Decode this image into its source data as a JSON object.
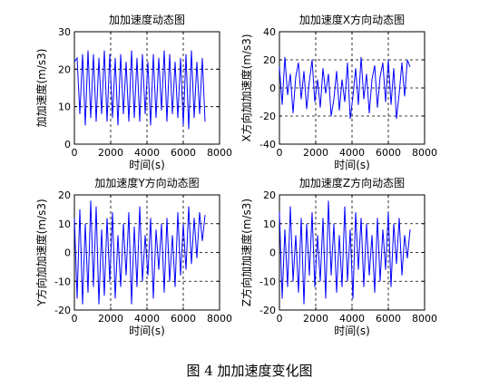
{
  "figure": {
    "caption": "图 4  加加速度变化图"
  },
  "chart_data": [
    {
      "type": "line",
      "title": "加加速度动态图",
      "xlabel": "时间(s)",
      "ylabel": "加加速度(m/s3)",
      "xlim": [
        0,
        8000
      ],
      "ylim": [
        0,
        30
      ],
      "xticks": [
        "0",
        "2000",
        "4000",
        "6000",
        "8000"
      ],
      "yticks": [
        "0",
        "10",
        "20",
        "30"
      ],
      "grid": "dashed at 2000, 4000, 6000 and y = 10, 20",
      "line_color": "#0000ff",
      "x": [
        0,
        150,
        300,
        450,
        600,
        750,
        900,
        1050,
        1200,
        1350,
        1500,
        1650,
        1800,
        1950,
        2100,
        2250,
        2400,
        2550,
        2700,
        2850,
        3000,
        3150,
        3300,
        3450,
        3600,
        3750,
        3900,
        4050,
        4200,
        4350,
        4500,
        4650,
        4800,
        4950,
        5100,
        5250,
        5400,
        5550,
        5700,
        5850,
        6000,
        6150,
        6300,
        6450,
        6600,
        6750,
        6900,
        7050,
        7200
      ],
      "y": [
        22,
        23,
        8,
        24,
        5,
        25,
        7,
        24,
        6,
        23,
        8,
        25,
        6,
        24,
        7,
        23,
        5,
        24,
        8,
        22,
        6,
        25,
        7,
        23,
        6,
        24,
        8,
        22,
        5,
        24,
        7,
        23,
        9,
        25,
        6,
        24,
        8,
        22,
        7,
        23,
        5,
        24,
        4,
        25,
        7,
        22,
        8,
        23,
        6
      ]
    },
    {
      "type": "line",
      "title": "加加速度X方向动态图",
      "xlabel": "时间(s)",
      "ylabel": "X方向加加速度(m/s3)",
      "xlim": [
        0,
        8000
      ],
      "ylim": [
        -40,
        40
      ],
      "xticks": [
        "0",
        "2000",
        "4000",
        "6000",
        "8000"
      ],
      "yticks": [
        "-40",
        "-20",
        "0",
        "20",
        "40"
      ],
      "grid": "dashed at 2000, 4000, 6000 and y = -20, 0, 20",
      "line_color": "#0000ff",
      "x": [
        0,
        150,
        300,
        450,
        600,
        750,
        900,
        1050,
        1200,
        1350,
        1500,
        1650,
        1800,
        1950,
        2100,
        2250,
        2400,
        2550,
        2700,
        2850,
        3000,
        3150,
        3300,
        3450,
        3600,
        3750,
        3900,
        4050,
        4200,
        4350,
        4500,
        4650,
        4800,
        4950,
        5100,
        5250,
        5400,
        5550,
        5700,
        5850,
        6000,
        6150,
        6300,
        6450,
        6600,
        6750,
        6900,
        7050,
        7200
      ],
      "y": [
        15,
        -12,
        22,
        -5,
        10,
        -18,
        8,
        18,
        -8,
        12,
        -15,
        5,
        20,
        -10,
        6,
        -14,
        14,
        -4,
        10,
        -20,
        -8,
        12,
        -16,
        6,
        -10,
        18,
        -22,
        -6,
        14,
        -12,
        22,
        -8,
        10,
        -18,
        6,
        16,
        -14,
        8,
        18,
        -10,
        20,
        -12,
        14,
        -22,
        -4,
        18,
        -6,
        20,
        15
      ]
    },
    {
      "type": "line",
      "title": "加加速度Y方向动态图",
      "xlabel": "时间(s)",
      "ylabel": "Y方向加加速度(m/s3)",
      "xlim": [
        0,
        8000
      ],
      "ylim": [
        -20,
        20
      ],
      "xticks": [
        "0",
        "2000",
        "4000",
        "6000",
        "8000"
      ],
      "yticks": [
        "-20",
        "-10",
        "0",
        "10",
        "20"
      ],
      "grid": "dashed at 2000, 4000, 6000 and y = -10, 0, 10",
      "line_color": "#0000ff",
      "x": [
        0,
        150,
        300,
        450,
        600,
        750,
        900,
        1050,
        1200,
        1350,
        1500,
        1650,
        1800,
        1950,
        2100,
        2250,
        2400,
        2550,
        2700,
        2850,
        3000,
        3150,
        3300,
        3450,
        3600,
        3750,
        3900,
        4050,
        4200,
        4350,
        4500,
        4650,
        4800,
        4950,
        5100,
        5250,
        5400,
        5550,
        5700,
        5850,
        6000,
        6150,
        6300,
        6450,
        6600,
        6750,
        6900,
        7050,
        7200
      ],
      "y": [
        12,
        -16,
        15,
        -18,
        10,
        -14,
        18,
        -12,
        16,
        -18,
        8,
        -15,
        12,
        -10,
        14,
        -16,
        6,
        -12,
        10,
        -8,
        14,
        -18,
        9,
        -12,
        16,
        -10,
        6,
        -8,
        12,
        -16,
        8,
        -6,
        10,
        -14,
        12,
        -10,
        6,
        -12,
        14,
        -8,
        10,
        -6,
        16,
        -4,
        12,
        -2,
        14,
        4,
        13
      ]
    },
    {
      "type": "line",
      "title": "加加速度Z方向动态图",
      "xlabel": "时间(s)",
      "ylabel": "Z方向加加速度(m/s3)",
      "xlim": [
        0,
        8000
      ],
      "ylim": [
        -20,
        20
      ],
      "xticks": [
        "0",
        "2000",
        "4000",
        "6000",
        "8000"
      ],
      "yticks": [
        "-20",
        "-10",
        "0",
        "10",
        "20"
      ],
      "grid": "dashed at 2000, 4000, 6000 and y = -10, 0, 10",
      "line_color": "#0000ff",
      "x": [
        0,
        150,
        300,
        450,
        600,
        750,
        900,
        1050,
        1200,
        1350,
        1500,
        1650,
        1800,
        1950,
        2100,
        2250,
        2400,
        2550,
        2700,
        2850,
        3000,
        3150,
        3300,
        3450,
        3600,
        3750,
        3900,
        4050,
        4200,
        4350,
        4500,
        4650,
        4800,
        4950,
        5100,
        5250,
        5400,
        5550,
        5700,
        5850,
        6000,
        6150,
        6300,
        6450,
        6600,
        6750,
        6900,
        7050,
        7200
      ],
      "y": [
        14,
        -16,
        8,
        -12,
        16,
        -10,
        6,
        -14,
        12,
        -18,
        10,
        -8,
        14,
        -12,
        6,
        -10,
        12,
        -16,
        18,
        -8,
        10,
        -14,
        6,
        -12,
        16,
        -10,
        8,
        -16,
        14,
        -6,
        12,
        -12,
        10,
        -8,
        6,
        -14,
        12,
        -10,
        8,
        -6,
        14,
        -12,
        10,
        -4,
        12,
        -8,
        6,
        -2,
        8
      ]
    }
  ]
}
